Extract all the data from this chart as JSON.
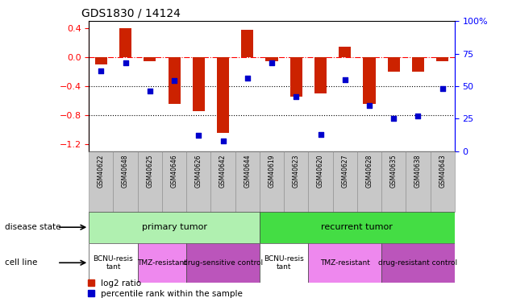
{
  "title": "GDS1830 / 14124",
  "samples": [
    "GSM40622",
    "GSM40648",
    "GSM40625",
    "GSM40646",
    "GSM40626",
    "GSM40642",
    "GSM40644",
    "GSM40619",
    "GSM40623",
    "GSM40620",
    "GSM40627",
    "GSM40628",
    "GSM40635",
    "GSM40638",
    "GSM40643"
  ],
  "log2_ratio": [
    -0.1,
    0.4,
    -0.05,
    -0.65,
    -0.75,
    -1.05,
    0.38,
    -0.05,
    -0.55,
    -0.5,
    0.15,
    -0.65,
    -0.2,
    -0.2,
    -0.05
  ],
  "percentile": [
    62,
    68,
    46,
    54,
    12,
    8,
    56,
    68,
    42,
    13,
    55,
    35,
    25,
    27,
    48
  ],
  "disease_state_groups": [
    {
      "label": "primary tumor",
      "start": 0,
      "end": 7,
      "color": "#b0f0b0"
    },
    {
      "label": "recurrent tumor",
      "start": 7,
      "end": 15,
      "color": "#44dd44"
    }
  ],
  "cell_line_groups": [
    {
      "label": "BCNU-resis\ntant",
      "start": 0,
      "end": 2,
      "color": "#ffffff"
    },
    {
      "label": "TMZ-resistant",
      "start": 2,
      "end": 4,
      "color": "#ff88ff"
    },
    {
      "label": "drug-sensitive control",
      "start": 4,
      "end": 7,
      "color": "#cc66cc"
    },
    {
      "label": "BCNU-resis\ntant",
      "start": 7,
      "end": 9,
      "color": "#ffffff"
    },
    {
      "label": "TMZ-resistant",
      "start": 9,
      "end": 12,
      "color": "#ff88ff"
    },
    {
      "label": "drug-resistant control",
      "start": 12,
      "end": 15,
      "color": "#cc66cc"
    }
  ],
  "bar_color": "#cc2200",
  "dot_color": "#0000cc",
  "ylim_left": [
    -1.3,
    0.5
  ],
  "ylim_right": [
    0,
    100
  ],
  "yticks_left": [
    0.4,
    0.0,
    -0.4,
    -0.8,
    -1.2
  ],
  "yticks_right": [
    100,
    75,
    50,
    25,
    0
  ],
  "hline_y": 0.0,
  "dotted_lines": [
    -0.4,
    -0.8
  ],
  "label_disease_state": "disease state",
  "label_cell_line": "cell line",
  "legend_log2": "log2 ratio",
  "legend_pct": "percentile rank within the sample",
  "gray_sample_bg": "#c8c8c8",
  "sample_label_fontsize": 6,
  "bar_width": 0.5
}
